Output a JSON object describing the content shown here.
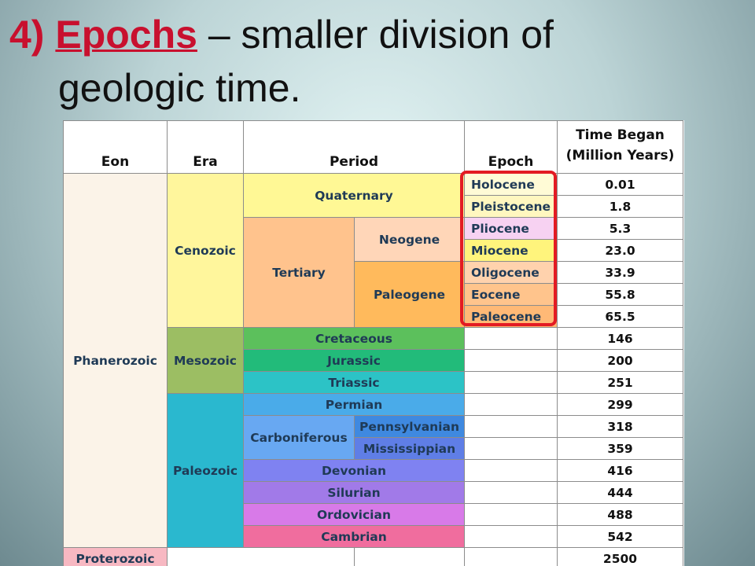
{
  "title": {
    "number": "4)",
    "term": "Epochs",
    "rest_line1": " – smaller division of",
    "line2": "geologic time."
  },
  "table": {
    "headers": {
      "eon": "Eon",
      "era": "Era",
      "period": "Period",
      "epoch": "Epoch",
      "time_began_1": "Time Began",
      "time_began_2": "(Million Years)"
    },
    "eons": {
      "phanerozoic": "Phanerozoic",
      "proterozoic": "Proterozoic"
    },
    "eras": {
      "cenozoic": "Cenozoic",
      "mesozoic": "Mesozoic",
      "paleozoic": "Paleozoic"
    },
    "periods": {
      "quaternary": "Quaternary",
      "tertiary": "Tertiary",
      "neogene": "Neogene",
      "paleogene": "Paleogene",
      "cretaceous": "Cretaceous",
      "jurassic": "Jurassic",
      "triassic": "Triassic",
      "permian": "Permian",
      "carboniferous": "Carboniferous",
      "pennsylvanian": "Pennsylvanian",
      "mississippian": "Mississippian",
      "devonian": "Devonian",
      "silurian": "Silurian",
      "ordovician": "Ordovician",
      "cambrian": "Cambrian"
    },
    "epochs": {
      "holocene": "Holocene",
      "pleistocene": "Pleistocene",
      "pliocene": "Pliocene",
      "miocene": "Miocene",
      "oligocene": "Oligocene",
      "eocene": "Eocene",
      "paleocene": "Paleocene"
    },
    "times": [
      "0.01",
      "1.8",
      "5.3",
      "23.0",
      "33.9",
      "55.8",
      "65.5",
      "146",
      "200",
      "251",
      "299",
      "318",
      "359",
      "416",
      "444",
      "488",
      "542",
      "2500"
    ]
  },
  "colors": {
    "title_accent": "#c8102e",
    "epoch_highlight": "#e31b23"
  }
}
